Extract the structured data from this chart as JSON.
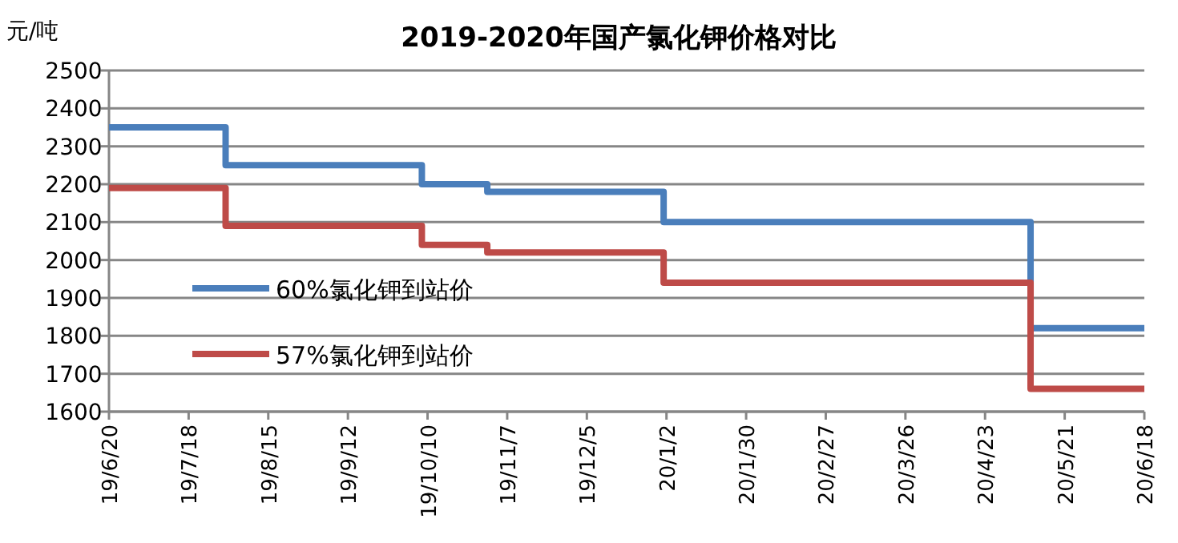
{
  "chart_data": {
    "type": "step",
    "title": "2019-2020年国产氯化钾价格对比",
    "ylabel": "元/吨",
    "x": [
      "2019-06-20",
      "2019-07-31",
      "2019-10-08",
      "2019-10-31",
      "2020-01-01",
      "2020-05-09",
      "2020-06-18"
    ],
    "series": [
      {
        "name": "60%氯化钾到站价",
        "color": "#4a7ebb",
        "values": [
          2350,
          2250,
          2200,
          2180,
          2100,
          1820,
          1820
        ]
      },
      {
        "name": "57%氯化钾到站价",
        "color": "#be4b48",
        "values": [
          2190,
          2090,
          2040,
          2020,
          1940,
          1660,
          1660
        ]
      }
    ],
    "xlim": [
      "2019-06-20",
      "2020-06-18"
    ],
    "xticks": [
      {
        "value": "2019-06-20",
        "label": "19/6/20"
      },
      {
        "value": "2019-07-18",
        "label": "19/7/18"
      },
      {
        "value": "2019-08-15",
        "label": "19/8/15"
      },
      {
        "value": "2019-09-12",
        "label": "19/9/12"
      },
      {
        "value": "2019-10-10",
        "label": "19/10/10"
      },
      {
        "value": "2019-11-07",
        "label": "19/11/7"
      },
      {
        "value": "2019-12-05",
        "label": "19/12/5"
      },
      {
        "value": "2020-01-02",
        "label": "20/1/2"
      },
      {
        "value": "2020-01-30",
        "label": "20/1/30"
      },
      {
        "value": "2020-02-27",
        "label": "20/2/27"
      },
      {
        "value": "2020-03-26",
        "label": "20/3/26"
      },
      {
        "value": "2020-04-23",
        "label": "20/4/23"
      },
      {
        "value": "2020-05-21",
        "label": "20/5/21"
      },
      {
        "value": "2020-06-18",
        "label": "20/6/18"
      }
    ],
    "ylim": [
      1600,
      2500
    ],
    "yticks": [
      1600,
      1700,
      1800,
      1900,
      2000,
      2100,
      2200,
      2300,
      2400,
      2500
    ],
    "grid": "y",
    "legend": "left",
    "line_style": "solid",
    "marker": "none"
  }
}
